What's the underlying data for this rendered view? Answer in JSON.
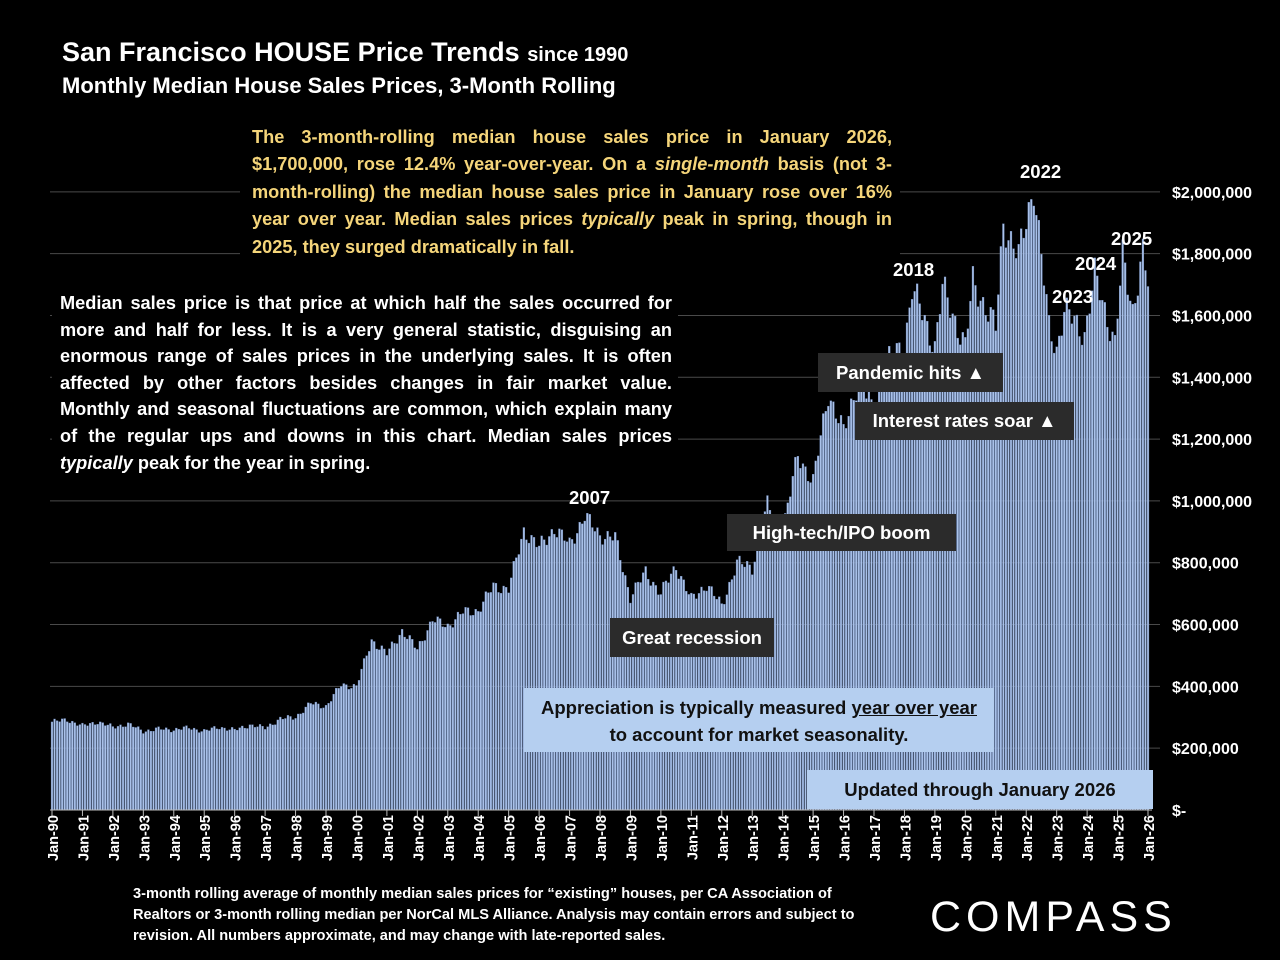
{
  "header": {
    "title_main": "San Francisco HOUSE Price Trends",
    "title_since": "since 1990",
    "subtitle": "Monthly Median House Sales Prices, 3-Month Rolling"
  },
  "notes": {
    "yellow_p1": "The 3-month-rolling median house sales price in January 2026, $1,700,000, rose 12.4% year-over-year. On a ",
    "yellow_em1": "single-month",
    "yellow_p2": " basis (not 3-month-rolling) the median house sales price in January rose over 16% year over year. Median sales prices ",
    "yellow_em2": "typically",
    "yellow_p3": " peak in spring, though in 2025, they surged dramatically in fall.",
    "white_p1": "Median sales price is that price at which half the sales occurred for more and half for less. It is a very general statistic, disguising an enormous range of sales prices in the underlying sales. It is often affected by other factors besides changes in fair market value. Monthly and seasonal fluctuations are common, which explain many of the regular ups and downs in this chart. Median sales prices ",
    "white_em": "typically",
    "white_p2": " peak for the year in spring."
  },
  "callouts": {
    "pandemic": "Pandemic hits ▲",
    "interest": "Interest rates soar ▲",
    "hightech": "High-tech/IPO boom",
    "recession": "Great recession",
    "appreciation_p1": "Appreciation is typically measured ",
    "appreciation_u": "year over year",
    "appreciation_p2": "to account for market seasonality.",
    "updated": "Updated through January 2026"
  },
  "year_labels": {
    "y2007": "2007",
    "y2018": "2018",
    "y2022": "2022",
    "y2023": "2023",
    "y2024": "2024",
    "y2025": "2025"
  },
  "footnote": "3-month rolling average of monthly median sales prices for “existing” houses, per CA Association of Realtors or 3-month rolling median per NorCal MLS Alliance. Analysis may contain errors and subject to revision. All numbers approximate, and may change with late-reported sales.",
  "logo": "COMPASS",
  "colors": {
    "bar_fill": "#aac2ea",
    "bar_stroke": "#6f89b8",
    "grid": "#4a4a4a",
    "background": "#000000"
  },
  "chart_data": {
    "type": "bar",
    "x_start": "Jan-90",
    "x_end": "Jan-26",
    "ylim": [
      0,
      2200000
    ],
    "ytick_values": [
      0,
      200000,
      400000,
      600000,
      800000,
      1000000,
      1200000,
      1400000,
      1600000,
      1800000,
      2000000
    ],
    "ytick_labels": [
      "$-",
      "$200,000",
      "$400,000",
      "$600,000",
      "$800,000",
      "$1,000,000",
      "$1,200,000",
      "$1,400,000",
      "$1,600,000",
      "$1,800,000",
      "$2,000,000"
    ],
    "xtick_labels": [
      "Jan-90",
      "Jan-91",
      "Jan-92",
      "Jan-93",
      "Jan-94",
      "Jan-95",
      "Jan-96",
      "Jan-97",
      "Jan-98",
      "Jan-99",
      "Jan-00",
      "Jan-01",
      "Jan-02",
      "Jan-03",
      "Jan-04",
      "Jan-05",
      "Jan-06",
      "Jan-07",
      "Jan-08",
      "Jan-09",
      "Jan-10",
      "Jan-11",
      "Jan-12",
      "Jan-13",
      "Jan-14",
      "Jan-15",
      "Jan-16",
      "Jan-17",
      "Jan-18",
      "Jan-19",
      "Jan-20",
      "Jan-21",
      "Jan-22",
      "Jan-23",
      "Jan-24",
      "Jan-25",
      "Jan-26"
    ],
    "grid": true,
    "keypoints": [
      [
        "Jan-90",
        285000
      ],
      [
        "Jul-90",
        292000
      ],
      [
        "Jan-91",
        272000
      ],
      [
        "Jul-91",
        285000
      ],
      [
        "Jan-92",
        268000
      ],
      [
        "Jul-92",
        278000
      ],
      [
        "Jan-93",
        255000
      ],
      [
        "Jul-93",
        262000
      ],
      [
        "Jan-94",
        260000
      ],
      [
        "Jul-94",
        266000
      ],
      [
        "Jan-95",
        255000
      ],
      [
        "Jul-95",
        268000
      ],
      [
        "Jan-96",
        258000
      ],
      [
        "Jul-96",
        275000
      ],
      [
        "Jan-97",
        265000
      ],
      [
        "Jul-97",
        295000
      ],
      [
        "Jan-98",
        300000
      ],
      [
        "Jul-98",
        345000
      ],
      [
        "Jan-99",
        335000
      ],
      [
        "Jul-99",
        405000
      ],
      [
        "Jan-00",
        400000
      ],
      [
        "Jul-00",
        550000
      ],
      [
        "Jan-01",
        505000
      ],
      [
        "Jul-01",
        580000
      ],
      [
        "Jan-02",
        520000
      ],
      [
        "Jul-02",
        615000
      ],
      [
        "Jan-03",
        595000
      ],
      [
        "Jul-03",
        640000
      ],
      [
        "Jan-04",
        645000
      ],
      [
        "Jul-04",
        725000
      ],
      [
        "Jan-05",
        715000
      ],
      [
        "Jul-05",
        905000
      ],
      [
        "Jan-06",
        850000
      ],
      [
        "Jul-06",
        910000
      ],
      [
        "Jan-07",
        860000
      ],
      [
        "Jul-07",
        950000
      ],
      [
        "Jan-08",
        890000
      ],
      [
        "Jul-08",
        880000
      ],
      [
        "Jan-09",
        690000
      ],
      [
        "Jul-09",
        770000
      ],
      [
        "Jan-10",
        700000
      ],
      [
        "Jul-10",
        790000
      ],
      [
        "Jan-11",
        680000
      ],
      [
        "Jul-11",
        730000
      ],
      [
        "Jan-12",
        660000
      ],
      [
        "Jul-12",
        800000
      ],
      [
        "Jan-13",
        785000
      ],
      [
        "Jul-13",
        985000
      ],
      [
        "Jan-14",
        900000
      ],
      [
        "Jul-14",
        1150000
      ],
      [
        "Jan-15",
        1060000
      ],
      [
        "Jul-15",
        1350000
      ],
      [
        "Jan-16",
        1220000
      ],
      [
        "Jul-16",
        1400000
      ],
      [
        "Jan-17",
        1280000
      ],
      [
        "Jul-17",
        1460000
      ],
      [
        "Jan-18",
        1500000
      ],
      [
        "Apr-18",
        1690000
      ],
      [
        "Jan-19",
        1500000
      ],
      [
        "Apr-19",
        1690000
      ],
      [
        "Jan-20",
        1500000
      ],
      [
        "Apr-20",
        1710000
      ],
      [
        "Jan-21",
        1560000
      ],
      [
        "Apr-21",
        1900000
      ],
      [
        "Oct-21",
        1790000
      ],
      [
        "Apr-22",
        2020000
      ],
      [
        "Oct-22",
        1560000
      ],
      [
        "Jan-23",
        1490000
      ],
      [
        "Apr-23",
        1620000
      ],
      [
        "Dec-23",
        1540000
      ],
      [
        "Apr-24",
        1730000
      ],
      [
        "Dec-24",
        1510000
      ],
      [
        "Mar-25",
        1790000
      ],
      [
        "Jul-25",
        1620000
      ],
      [
        "Nov-25",
        1800000
      ],
      [
        "Jan-26",
        1700000
      ]
    ]
  }
}
